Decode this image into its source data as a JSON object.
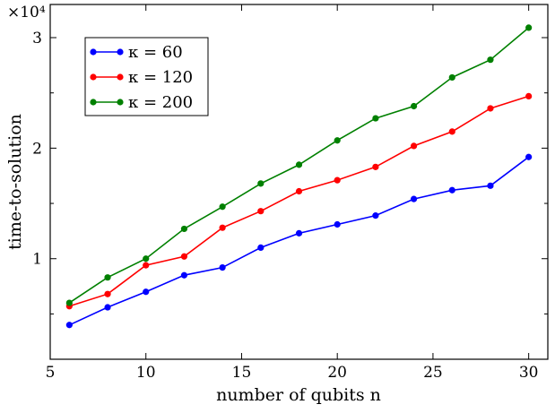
{
  "chart_data": {
    "type": "line",
    "xlabel": "number of qubits n",
    "ylabel": "time-to-solution",
    "y_multiplier_label": "×10⁴",
    "xlim": [
      5,
      31
    ],
    "ylim": [
      0.09,
      3.3
    ],
    "x_ticks": [
      5,
      10,
      15,
      20,
      25,
      30
    ],
    "y_ticks": [
      1,
      2,
      3
    ],
    "y_minor_ticks": [
      0.5,
      1.5,
      2.5
    ],
    "grid": false,
    "legend_position": "top-left",
    "x": [
      6,
      8,
      10,
      12,
      14,
      16,
      18,
      20,
      22,
      24,
      26,
      28,
      30
    ],
    "series": [
      {
        "name": "κ = 60",
        "color": "#0000ff",
        "values": [
          0.4,
          0.56,
          0.7,
          0.85,
          0.92,
          1.1,
          1.23,
          1.31,
          1.39,
          1.54,
          1.62,
          1.66,
          1.92
        ]
      },
      {
        "name": "κ = 120",
        "color": "#ff0000",
        "values": [
          0.57,
          0.68,
          0.94,
          1.02,
          1.28,
          1.43,
          1.61,
          1.71,
          1.83,
          2.02,
          2.15,
          2.36,
          2.47
        ]
      },
      {
        "name": "κ = 200",
        "color": "#008000",
        "values": [
          0.6,
          0.83,
          1.0,
          1.27,
          1.47,
          1.68,
          1.85,
          2.07,
          2.27,
          2.38,
          2.64,
          2.8,
          3.09
        ]
      }
    ]
  }
}
